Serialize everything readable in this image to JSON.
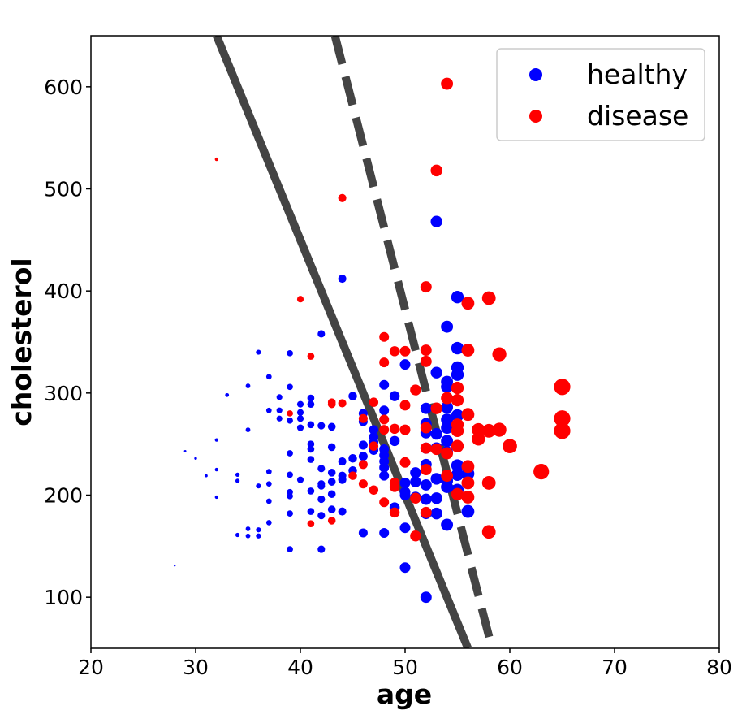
{
  "chart_data": {
    "type": "scatter",
    "title": "",
    "xlabel": "age",
    "ylabel": "cholesterol",
    "xlim": [
      20,
      80
    ],
    "ylim": [
      50,
      650
    ],
    "x_ticks": [
      20,
      30,
      40,
      50,
      60,
      70,
      80
    ],
    "y_ticks": [
      100,
      200,
      300,
      400,
      500,
      600
    ],
    "grid": false,
    "legend": {
      "position": "top-right",
      "entries": [
        "healthy",
        "disease"
      ]
    },
    "colors": {
      "healthy": "#0000ff",
      "disease": "#ff0000",
      "boundary": "#444444"
    },
    "series": [
      {
        "name": "healthy",
        "color": "#0000ff",
        "points": [
          [
            28,
            131
          ],
          [
            29,
            243
          ],
          [
            30,
            236
          ],
          [
            31,
            219
          ],
          [
            32,
            254
          ],
          [
            32,
            225
          ],
          [
            32,
            198
          ],
          [
            33,
            298
          ],
          [
            34,
            220
          ],
          [
            34,
            214
          ],
          [
            34,
            161
          ],
          [
            35,
            307
          ],
          [
            35,
            264
          ],
          [
            35,
            167
          ],
          [
            35,
            160
          ],
          [
            36,
            340
          ],
          [
            36,
            209
          ],
          [
            36,
            166
          ],
          [
            36,
            160
          ],
          [
            37,
            316
          ],
          [
            37,
            283
          ],
          [
            37,
            223
          ],
          [
            37,
            211
          ],
          [
            37,
            194
          ],
          [
            37,
            173
          ],
          [
            38,
            296
          ],
          [
            38,
            283
          ],
          [
            38,
            275
          ],
          [
            39,
            339
          ],
          [
            39,
            306
          ],
          [
            39,
            273
          ],
          [
            39,
            241
          ],
          [
            39,
            220
          ],
          [
            39,
            203
          ],
          [
            39,
            199
          ],
          [
            39,
            182
          ],
          [
            39,
            147
          ],
          [
            40,
            289
          ],
          [
            40,
            281
          ],
          [
            40,
            275
          ],
          [
            40,
            266
          ],
          [
            40,
            215
          ],
          [
            41,
            295
          ],
          [
            41,
            289
          ],
          [
            41,
            269
          ],
          [
            41,
            250
          ],
          [
            41,
            245
          ],
          [
            41,
            235
          ],
          [
            41,
            204
          ],
          [
            41,
            184
          ],
          [
            42,
            358
          ],
          [
            42,
            268
          ],
          [
            42,
            226
          ],
          [
            42,
            211
          ],
          [
            42,
            209
          ],
          [
            42,
            196
          ],
          [
            42,
            180
          ],
          [
            42,
            147
          ],
          [
            43,
            267
          ],
          [
            43,
            247
          ],
          [
            43,
            222
          ],
          [
            43,
            213
          ],
          [
            43,
            201
          ],
          [
            43,
            186
          ],
          [
            44,
            412
          ],
          [
            44,
            233
          ],
          [
            44,
            219
          ],
          [
            44,
            215
          ],
          [
            44,
            184
          ],
          [
            45,
            297
          ],
          [
            45,
            236
          ],
          [
            45,
            224
          ],
          [
            46,
            280
          ],
          [
            46,
            272
          ],
          [
            46,
            249
          ],
          [
            46,
            238
          ],
          [
            46,
            163
          ],
          [
            47,
            264
          ],
          [
            47,
            257
          ],
          [
            47,
            252
          ],
          [
            47,
            244
          ],
          [
            48,
            308
          ],
          [
            48,
            283
          ],
          [
            48,
            245
          ],
          [
            48,
            239
          ],
          [
            48,
            233
          ],
          [
            48,
            227
          ],
          [
            48,
            219
          ],
          [
            48,
            163
          ],
          [
            49,
            297
          ],
          [
            49,
            253
          ],
          [
            49,
            188
          ],
          [
            50,
            328
          ],
          [
            50,
            212
          ],
          [
            50,
            203
          ],
          [
            50,
            200
          ],
          [
            50,
            168
          ],
          [
            50,
            129
          ],
          [
            51,
            222
          ],
          [
            51,
            213
          ],
          [
            51,
            198
          ],
          [
            52,
            285
          ],
          [
            52,
            270
          ],
          [
            52,
            261
          ],
          [
            52,
            246
          ],
          [
            52,
            230
          ],
          [
            52,
            210
          ],
          [
            52,
            196
          ],
          [
            52,
            182
          ],
          [
            52,
            100
          ],
          [
            53,
            468
          ],
          [
            53,
            320
          ],
          [
            53,
            260
          ],
          [
            53,
            246
          ],
          [
            53,
            216
          ],
          [
            53,
            197
          ],
          [
            53,
            182
          ],
          [
            54,
            365
          ],
          [
            54,
            311
          ],
          [
            54,
            306
          ],
          [
            54,
            286
          ],
          [
            54,
            274
          ],
          [
            54,
            266
          ],
          [
            54,
            253
          ],
          [
            54,
            242
          ],
          [
            54,
            214
          ],
          [
            54,
            208
          ],
          [
            54,
            171
          ],
          [
            55,
            394
          ],
          [
            55,
            344
          ],
          [
            55,
            325
          ],
          [
            55,
            318
          ],
          [
            55,
            278
          ],
          [
            55,
            229
          ],
          [
            55,
            220
          ],
          [
            55,
            205
          ],
          [
            56,
            221
          ],
          [
            56,
            184
          ]
        ]
      },
      {
        "name": "disease",
        "color": "#ff0000",
        "points": [
          [
            32,
            529
          ],
          [
            39,
            280
          ],
          [
            40,
            392
          ],
          [
            41,
            336
          ],
          [
            41,
            172
          ],
          [
            43,
            291
          ],
          [
            43,
            289
          ],
          [
            43,
            175
          ],
          [
            44,
            491
          ],
          [
            44,
            290
          ],
          [
            45,
            219
          ],
          [
            46,
            275
          ],
          [
            46,
            230
          ],
          [
            46,
            211
          ],
          [
            47,
            291
          ],
          [
            47,
            248
          ],
          [
            47,
            205
          ],
          [
            48,
            355
          ],
          [
            48,
            330
          ],
          [
            48,
            274
          ],
          [
            48,
            264
          ],
          [
            48,
            193
          ],
          [
            49,
            341
          ],
          [
            49,
            265
          ],
          [
            49,
            212
          ],
          [
            49,
            208
          ],
          [
            49,
            183
          ],
          [
            50,
            341
          ],
          [
            50,
            288
          ],
          [
            50,
            264
          ],
          [
            50,
            232
          ],
          [
            51,
            303
          ],
          [
            51,
            197
          ],
          [
            51,
            160
          ],
          [
            52,
            404
          ],
          [
            52,
            342
          ],
          [
            52,
            331
          ],
          [
            52,
            266
          ],
          [
            52,
            246
          ],
          [
            52,
            225
          ],
          [
            52,
            183
          ],
          [
            53,
            518
          ],
          [
            53,
            285
          ],
          [
            53,
            245
          ],
          [
            54,
            603
          ],
          [
            54,
            295
          ],
          [
            54,
            241
          ],
          [
            54,
            219
          ],
          [
            55,
            305
          ],
          [
            55,
            293
          ],
          [
            55,
            269
          ],
          [
            55,
            263
          ],
          [
            55,
            248
          ],
          [
            55,
            201
          ],
          [
            56,
            388
          ],
          [
            56,
            342
          ],
          [
            56,
            279
          ],
          [
            56,
            228
          ],
          [
            56,
            212
          ],
          [
            56,
            198
          ],
          [
            57,
            264
          ],
          [
            57,
            255
          ],
          [
            58,
            393
          ],
          [
            58,
            263
          ],
          [
            58,
            212
          ],
          [
            58,
            164
          ],
          [
            59,
            338
          ],
          [
            59,
            264
          ],
          [
            60,
            248
          ],
          [
            63,
            223
          ],
          [
            65,
            306
          ],
          [
            65,
            275
          ],
          [
            65,
            263
          ]
        ]
      }
    ],
    "lines": [
      {
        "style": "solid",
        "points": [
          [
            32,
            650
          ],
          [
            56,
            50
          ]
        ]
      },
      {
        "style": "dashed",
        "points": [
          [
            43.3,
            650
          ],
          [
            58.3,
            50
          ]
        ]
      }
    ]
  }
}
